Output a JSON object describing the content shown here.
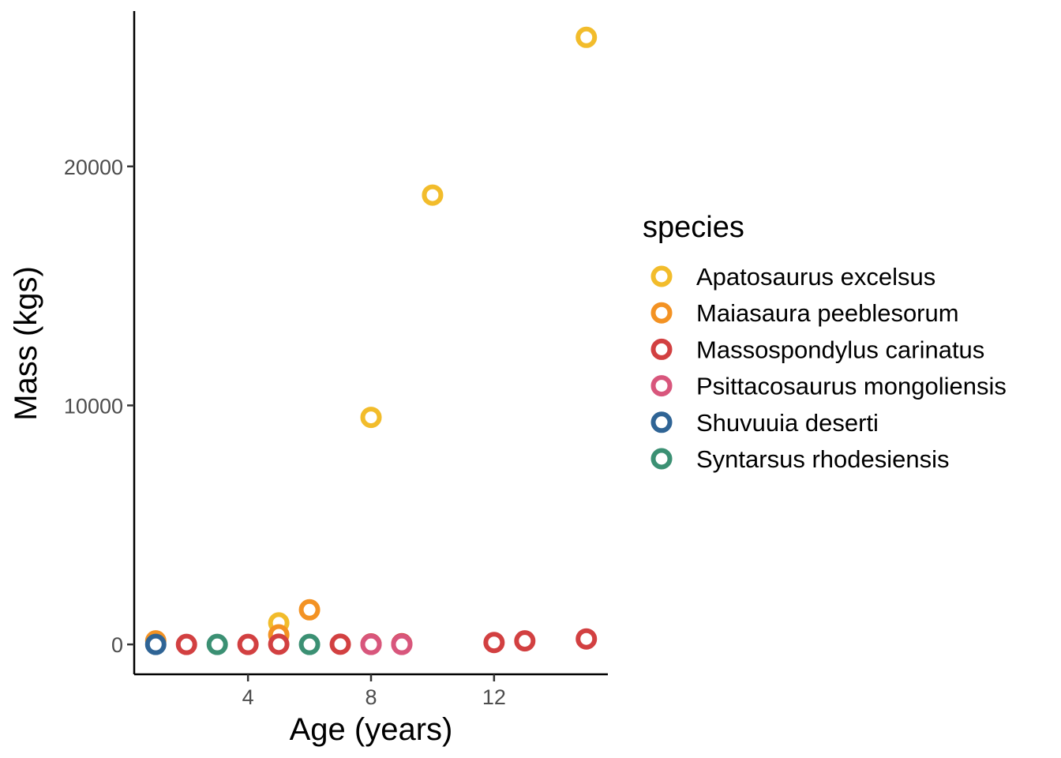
{
  "chart_data": {
    "type": "scatter",
    "title": "",
    "xlabel": "Age (years)",
    "ylabel": "Mass (kgs)",
    "xlim": [
      0.3,
      15.7
    ],
    "ylim": [
      -1250,
      26500
    ],
    "x_ticks": [
      4,
      8,
      12
    ],
    "y_ticks": [
      0,
      10000,
      20000
    ],
    "grid": false,
    "legend_title": "species",
    "legend_position": "right",
    "marker": "hollow-circle",
    "series": [
      {
        "name": "Apatosaurus excelsus",
        "color": "#F2BC2B",
        "points": [
          [
            5,
            900
          ],
          [
            8,
            9500
          ],
          [
            10,
            18800
          ],
          [
            15,
            25400
          ]
        ]
      },
      {
        "name": "Maiasaura peeblesorum",
        "color": "#F39223",
        "points": [
          [
            1,
            150
          ],
          [
            5,
            400
          ],
          [
            6,
            1450
          ]
        ]
      },
      {
        "name": "Massospondylus carinatus",
        "color": "#D24041",
        "points": [
          [
            2,
            0
          ],
          [
            4,
            0
          ],
          [
            5,
            10
          ],
          [
            7,
            10
          ],
          [
            8,
            20
          ],
          [
            9,
            30
          ],
          [
            12,
            80
          ],
          [
            13,
            150
          ],
          [
            15,
            230
          ]
        ]
      },
      {
        "name": "Psittacosaurus mongoliensis",
        "color": "#D8567C",
        "points": [
          [
            8,
            0
          ],
          [
            9,
            0
          ]
        ]
      },
      {
        "name": "Shuvuuia deserti",
        "color": "#2F6495",
        "points": [
          [
            1,
            0
          ]
        ]
      },
      {
        "name": "Syntarsus rhodesiensis",
        "color": "#3B9073",
        "points": [
          [
            3,
            0
          ],
          [
            6,
            0
          ]
        ]
      }
    ]
  }
}
